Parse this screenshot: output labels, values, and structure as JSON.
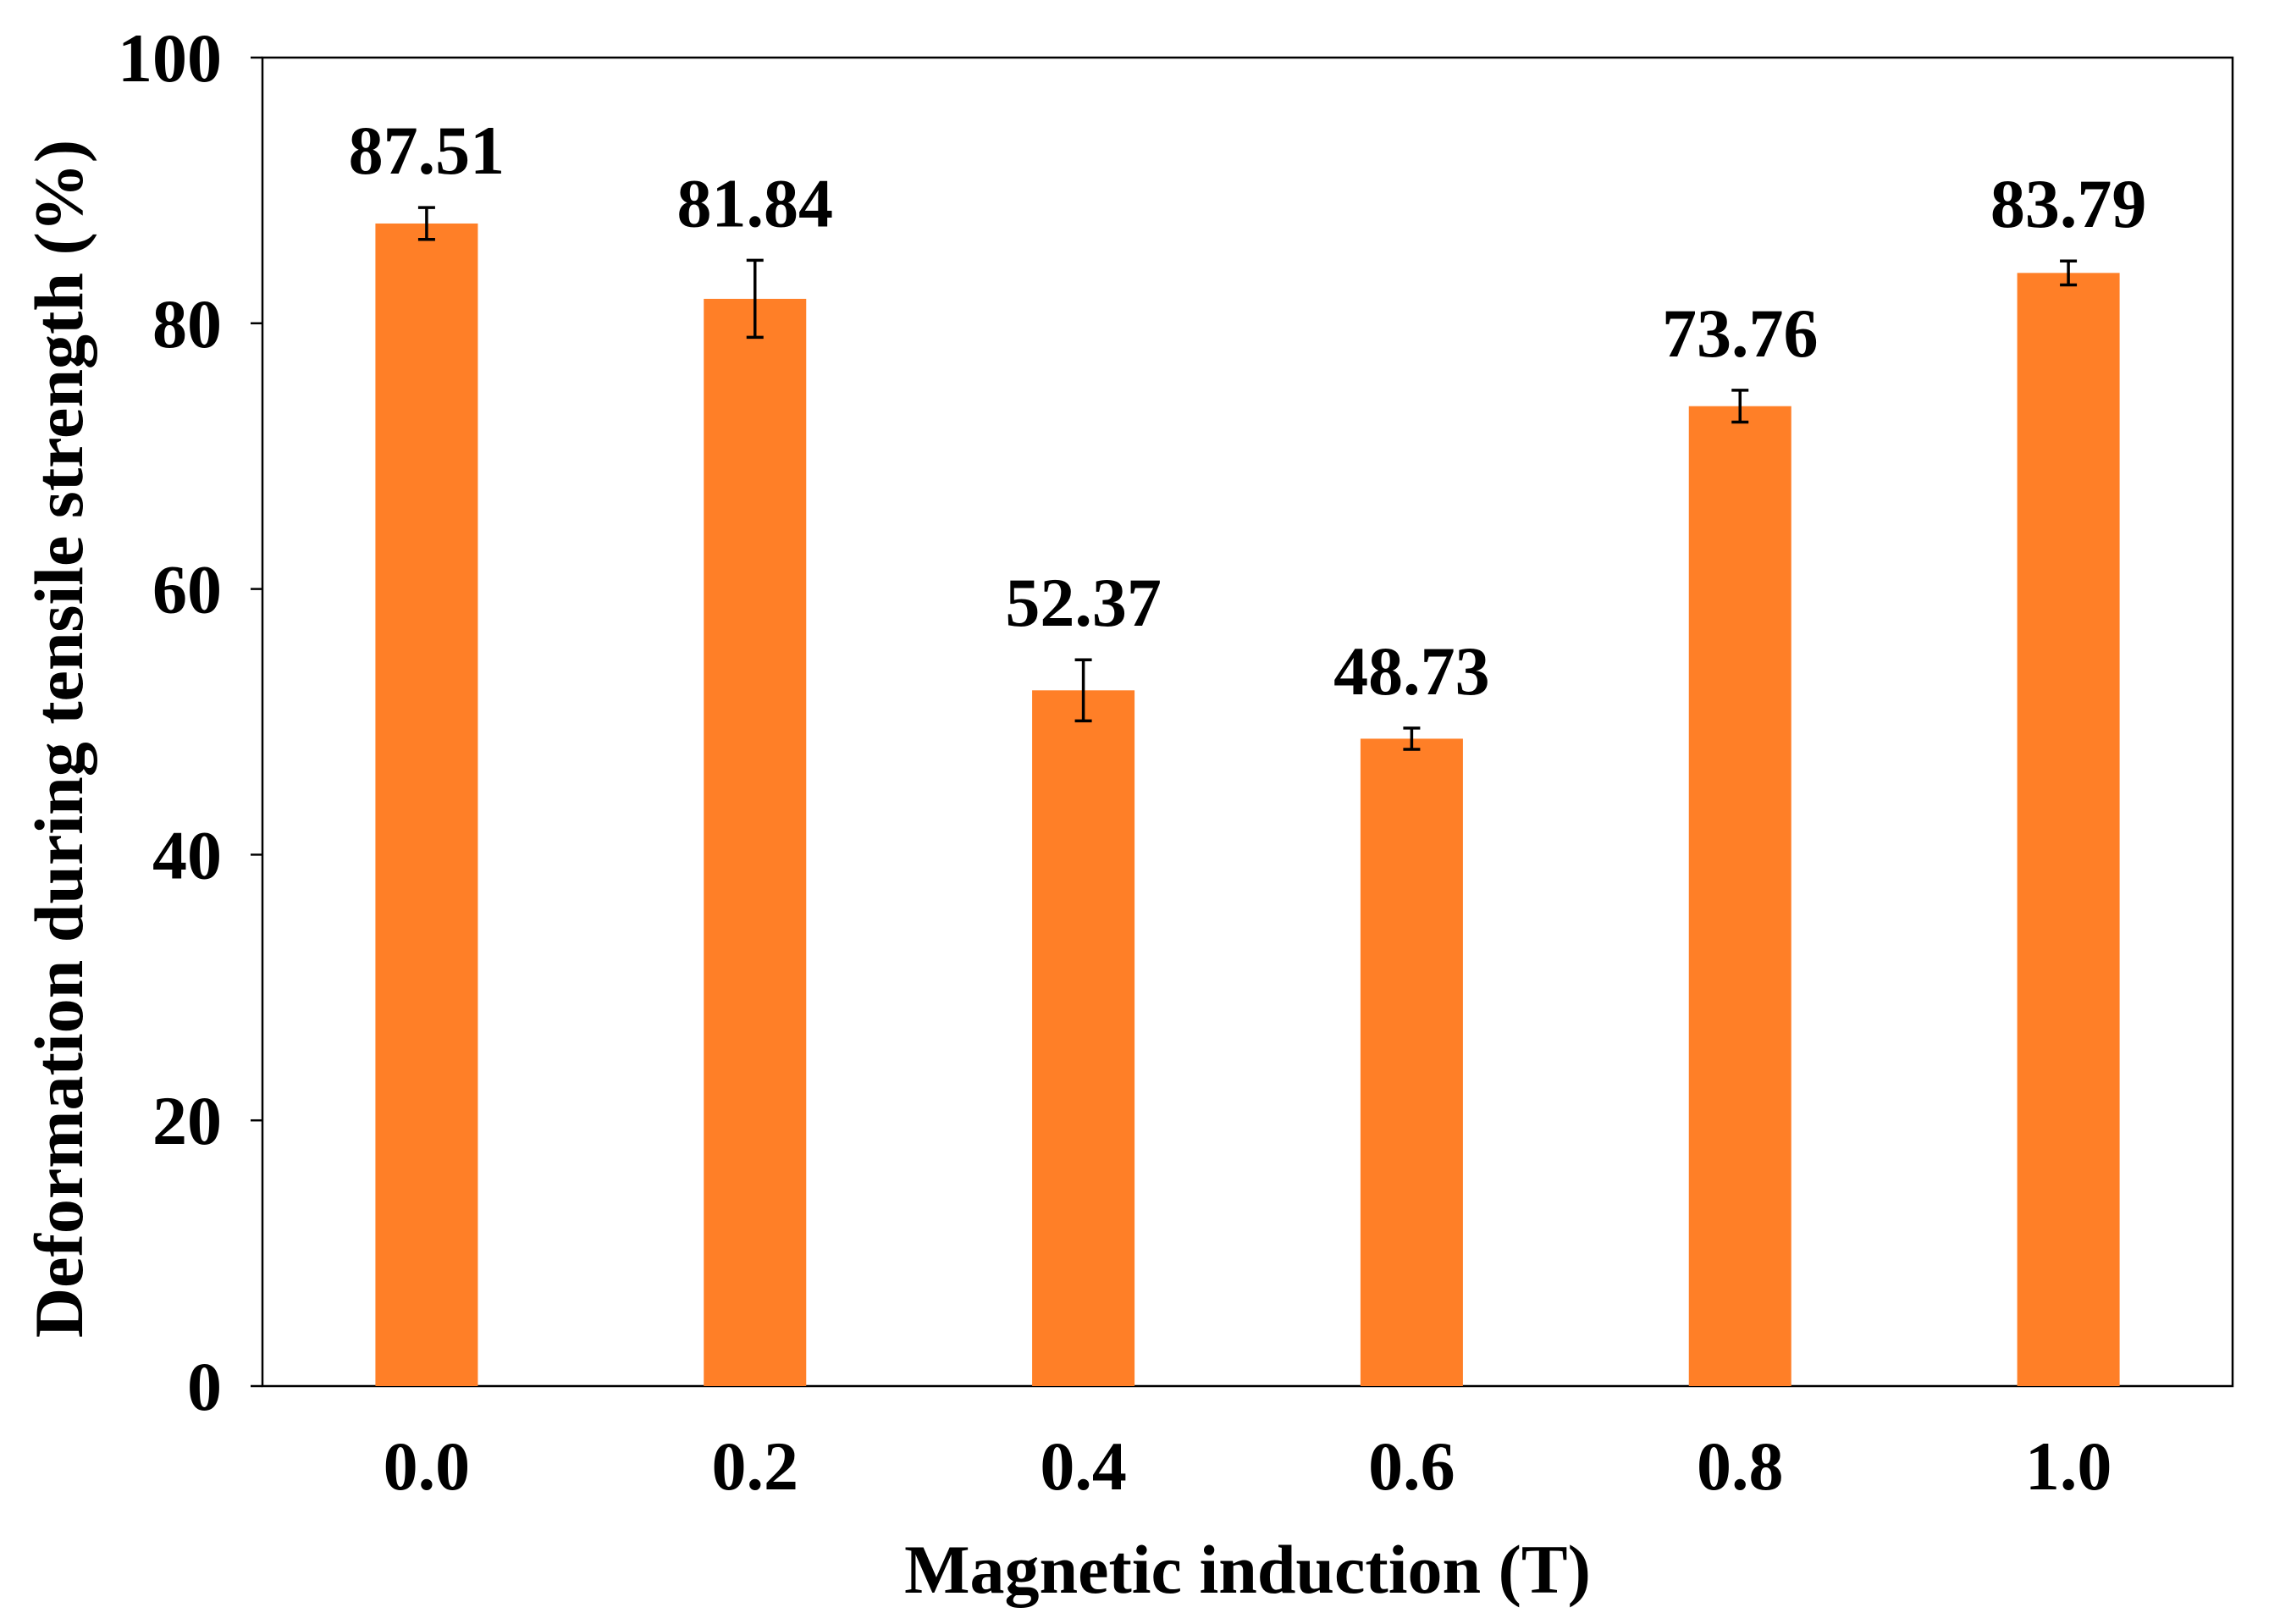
{
  "chart_data": {
    "type": "bar",
    "title": "",
    "xlabel": "Magnetic induction (T)",
    "ylabel": "Deformation during tensile strength (%)",
    "categories": [
      "0.0",
      "0.2",
      "0.4",
      "0.6",
      "0.8",
      "1.0"
    ],
    "values": [
      87.51,
      81.84,
      52.37,
      48.73,
      73.76,
      83.79
    ],
    "value_labels": [
      "87.51",
      "81.84",
      "52.37",
      "48.73",
      "73.76",
      "83.79"
    ],
    "errors": [
      1.2,
      2.9,
      2.3,
      0.8,
      1.2,
      0.9
    ],
    "ylim": [
      0,
      100
    ],
    "yticks": [
      0,
      20,
      40,
      60,
      80,
      100
    ],
    "ytick_labels": [
      "0",
      "20",
      "40",
      "60",
      "80",
      "100"
    ],
    "grid": false,
    "legend": "none",
    "bar_color": "#FF7F27",
    "error_color": "#000000",
    "axis_color": "#000000"
  }
}
